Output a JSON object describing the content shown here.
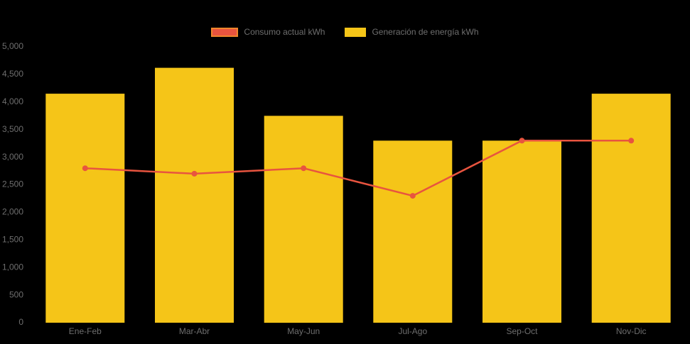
{
  "background_color": "#000000",
  "text_color": "#6e6e6e",
  "legend": {
    "items": [
      {
        "label": "Consumo actual kWh",
        "color": "#e8543f",
        "border_color": "#f0862c",
        "series_type": "line"
      },
      {
        "label": "Generación de energía kWh",
        "color": "#f5c518",
        "border_color": "#f5c518",
        "series_type": "bar"
      }
    ]
  },
  "chart_data": {
    "type": "bar+line combo",
    "title": "",
    "xlabel": "",
    "ylabel": "",
    "categories": [
      "Ene-Feb",
      "Mar-Abr",
      "May-Jun",
      "Jul-Ago",
      "Sep-Oct",
      "Nov-Dic"
    ],
    "series": [
      {
        "name": "Generación de energía kWh",
        "type": "bar",
        "color": "#f5c518",
        "values": [
          4150,
          4620,
          3750,
          3300,
          3300,
          4150
        ]
      },
      {
        "name": "Consumo actual kWh",
        "type": "line",
        "color": "#e8543f",
        "values": [
          2800,
          2700,
          2800,
          2300,
          3300,
          3300
        ]
      }
    ],
    "ylim": [
      0,
      5000
    ],
    "ytick_step": 500,
    "ytick_labels": [
      "0",
      "500",
      "1,000",
      "1,500",
      "2,000",
      "2,500",
      "3,000",
      "3,500",
      "4,000",
      "4,500",
      "5,000"
    ],
    "grid": false,
    "legend_position": "top"
  }
}
